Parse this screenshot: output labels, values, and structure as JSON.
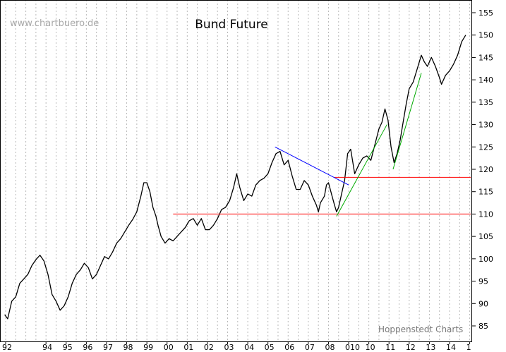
{
  "chart_data": {
    "type": "line",
    "title": "Bund Future",
    "watermark": "www.chartbuero.de",
    "credit": "Hoppenstedt Charts",
    "ylim": [
      82,
      158
    ],
    "xlim": [
      1991.9,
      2015.05
    ],
    "y_ticks": [
      "85",
      "90",
      "95",
      "100",
      "105",
      "110",
      "115",
      "120",
      "125",
      "130",
      "135",
      "140",
      "145",
      "150",
      "155"
    ],
    "x_ticks": [
      {
        "label": "92",
        "x": 1992
      },
      {
        "label": "94",
        "x": 1994
      },
      {
        "label": "95",
        "x": 1995
      },
      {
        "label": "96",
        "x": 1996
      },
      {
        "label": "97",
        "x": 1997
      },
      {
        "label": "98",
        "x": 1998
      },
      {
        "label": "99",
        "x": 1999
      },
      {
        "label": "00",
        "x": 2000
      },
      {
        "label": "01",
        "x": 2001
      },
      {
        "label": "02",
        "x": 2002
      },
      {
        "label": "03",
        "x": 2003
      },
      {
        "label": "04",
        "x": 2004
      },
      {
        "label": "05",
        "x": 2005
      },
      {
        "label": "06",
        "x": 2006
      },
      {
        "label": "07",
        "x": 2007
      },
      {
        "label": "08",
        "x": 2008
      },
      {
        "label": "010",
        "x": 2009
      },
      {
        "label": "10",
        "x": 2010
      },
      {
        "label": "11",
        "x": 2011
      },
      {
        "label": "12",
        "x": 2012
      },
      {
        "label": "13",
        "x": 2013
      },
      {
        "label": "14",
        "x": 2014
      },
      {
        "label": "1",
        "x": 2015
      }
    ],
    "grid": "vertical dotted",
    "series": [
      {
        "color": "#000000",
        "points": [
          [
            1991.95,
            87.5
          ],
          [
            1992.1,
            86.6
          ],
          [
            1992.3,
            90.5
          ],
          [
            1992.5,
            91.5
          ],
          [
            1992.7,
            94.5
          ],
          [
            1992.9,
            95.5
          ],
          [
            1993.1,
            96.5
          ],
          [
            1993.3,
            98.5
          ],
          [
            1993.5,
            99.8
          ],
          [
            1993.7,
            100.8
          ],
          [
            1993.9,
            99.5
          ],
          [
            1994.1,
            96.5
          ],
          [
            1994.3,
            92.0
          ],
          [
            1994.5,
            90.5
          ],
          [
            1994.7,
            88.5
          ],
          [
            1994.9,
            89.5
          ],
          [
            1995.1,
            91.5
          ],
          [
            1995.3,
            94.5
          ],
          [
            1995.5,
            96.5
          ],
          [
            1995.7,
            97.5
          ],
          [
            1995.9,
            99.0
          ],
          [
            1996.1,
            98.0
          ],
          [
            1996.3,
            95.5
          ],
          [
            1996.5,
            96.5
          ],
          [
            1996.7,
            98.5
          ],
          [
            1996.9,
            100.5
          ],
          [
            1997.1,
            100.0
          ],
          [
            1997.3,
            101.5
          ],
          [
            1997.5,
            103.5
          ],
          [
            1997.7,
            104.5
          ],
          [
            1997.9,
            106.0
          ],
          [
            1998.1,
            107.5
          ],
          [
            1998.3,
            108.8
          ],
          [
            1998.5,
            110.5
          ],
          [
            1998.7,
            114.0
          ],
          [
            1998.85,
            117.0
          ],
          [
            1999.0,
            117.0
          ],
          [
            1999.15,
            115.0
          ],
          [
            1999.3,
            111.5
          ],
          [
            1999.45,
            109.5
          ],
          [
            1999.55,
            107.5
          ],
          [
            1999.7,
            105.0
          ],
          [
            1999.9,
            103.5
          ],
          [
            2000.1,
            104.5
          ],
          [
            2000.3,
            104.0
          ],
          [
            2000.5,
            105.0
          ],
          [
            2000.7,
            106.0
          ],
          [
            2000.9,
            107.0
          ],
          [
            2001.1,
            108.5
          ],
          [
            2001.3,
            109.0
          ],
          [
            2001.5,
            107.5
          ],
          [
            2001.7,
            109.0
          ],
          [
            2001.9,
            106.5
          ],
          [
            2002.1,
            106.5
          ],
          [
            2002.3,
            107.5
          ],
          [
            2002.5,
            109.0
          ],
          [
            2002.7,
            111.0
          ],
          [
            2002.9,
            111.5
          ],
          [
            2003.1,
            113.0
          ],
          [
            2003.3,
            116.0
          ],
          [
            2003.45,
            119.0
          ],
          [
            2003.6,
            116.0
          ],
          [
            2003.8,
            113.0
          ],
          [
            2004.0,
            114.5
          ],
          [
            2004.2,
            114.0
          ],
          [
            2004.4,
            116.5
          ],
          [
            2004.6,
            117.5
          ],
          [
            2004.8,
            118.0
          ],
          [
            2005.0,
            119.0
          ],
          [
            2005.2,
            121.5
          ],
          [
            2005.4,
            123.5
          ],
          [
            2005.6,
            124.0
          ],
          [
            2005.8,
            121.0
          ],
          [
            2006.0,
            122.0
          ],
          [
            2006.2,
            118.5
          ],
          [
            2006.4,
            115.5
          ],
          [
            2006.6,
            115.5
          ],
          [
            2006.8,
            117.5
          ],
          [
            2007.0,
            116.5
          ],
          [
            2007.2,
            114.0
          ],
          [
            2007.4,
            112.0
          ],
          [
            2007.5,
            110.5
          ],
          [
            2007.6,
            112.5
          ],
          [
            2007.8,
            114.0
          ],
          [
            2007.9,
            116.5
          ],
          [
            2008.0,
            117.0
          ],
          [
            2008.15,
            114.5
          ],
          [
            2008.3,
            112.0
          ],
          [
            2008.4,
            110.5
          ],
          [
            2008.5,
            111.5
          ],
          [
            2008.65,
            114.5
          ],
          [
            2008.8,
            117.5
          ],
          [
            2008.95,
            123.5
          ],
          [
            2009.1,
            124.5
          ],
          [
            2009.3,
            119.0
          ],
          [
            2009.5,
            121.0
          ],
          [
            2009.7,
            122.5
          ],
          [
            2009.9,
            123.0
          ],
          [
            2010.1,
            122.0
          ],
          [
            2010.3,
            125.5
          ],
          [
            2010.5,
            129.0
          ],
          [
            2010.65,
            130.5
          ],
          [
            2010.8,
            133.5
          ],
          [
            2010.95,
            131.0
          ],
          [
            2011.1,
            125.0
          ],
          [
            2011.25,
            121.5
          ],
          [
            2011.4,
            123.5
          ],
          [
            2011.55,
            126.5
          ],
          [
            2011.7,
            130.5
          ],
          [
            2011.85,
            134.5
          ],
          [
            2012.0,
            138.0
          ],
          [
            2012.2,
            139.5
          ],
          [
            2012.4,
            142.5
          ],
          [
            2012.6,
            145.5
          ],
          [
            2012.75,
            144.0
          ],
          [
            2012.9,
            143.0
          ],
          [
            2013.1,
            145.0
          ],
          [
            2013.3,
            143.0
          ],
          [
            2013.5,
            140.5
          ],
          [
            2013.6,
            139.0
          ],
          [
            2013.8,
            141.0
          ],
          [
            2014.0,
            142.0
          ],
          [
            2014.2,
            143.5
          ],
          [
            2014.4,
            145.5
          ],
          [
            2014.6,
            148.5
          ],
          [
            2014.8,
            150.0
          ]
        ]
      }
    ],
    "lines": [
      {
        "color": "#ff0000",
        "points": [
          [
            2000.3,
            110.0
          ],
          [
            2015.05,
            110.0
          ]
        ]
      },
      {
        "color": "#ff0000",
        "points": [
          [
            2008.3,
            118.2
          ],
          [
            2015.05,
            118.2
          ]
        ]
      },
      {
        "color": "#0000ff",
        "points": [
          [
            2005.35,
            125.0
          ],
          [
            2009.0,
            116.5
          ]
        ]
      },
      {
        "color": "#00aa00",
        "points": [
          [
            2008.4,
            109.5
          ],
          [
            2010.9,
            130.0
          ]
        ]
      },
      {
        "color": "#00aa00",
        "points": [
          [
            2011.2,
            120.0
          ],
          [
            2012.6,
            141.5
          ]
        ]
      }
    ]
  }
}
